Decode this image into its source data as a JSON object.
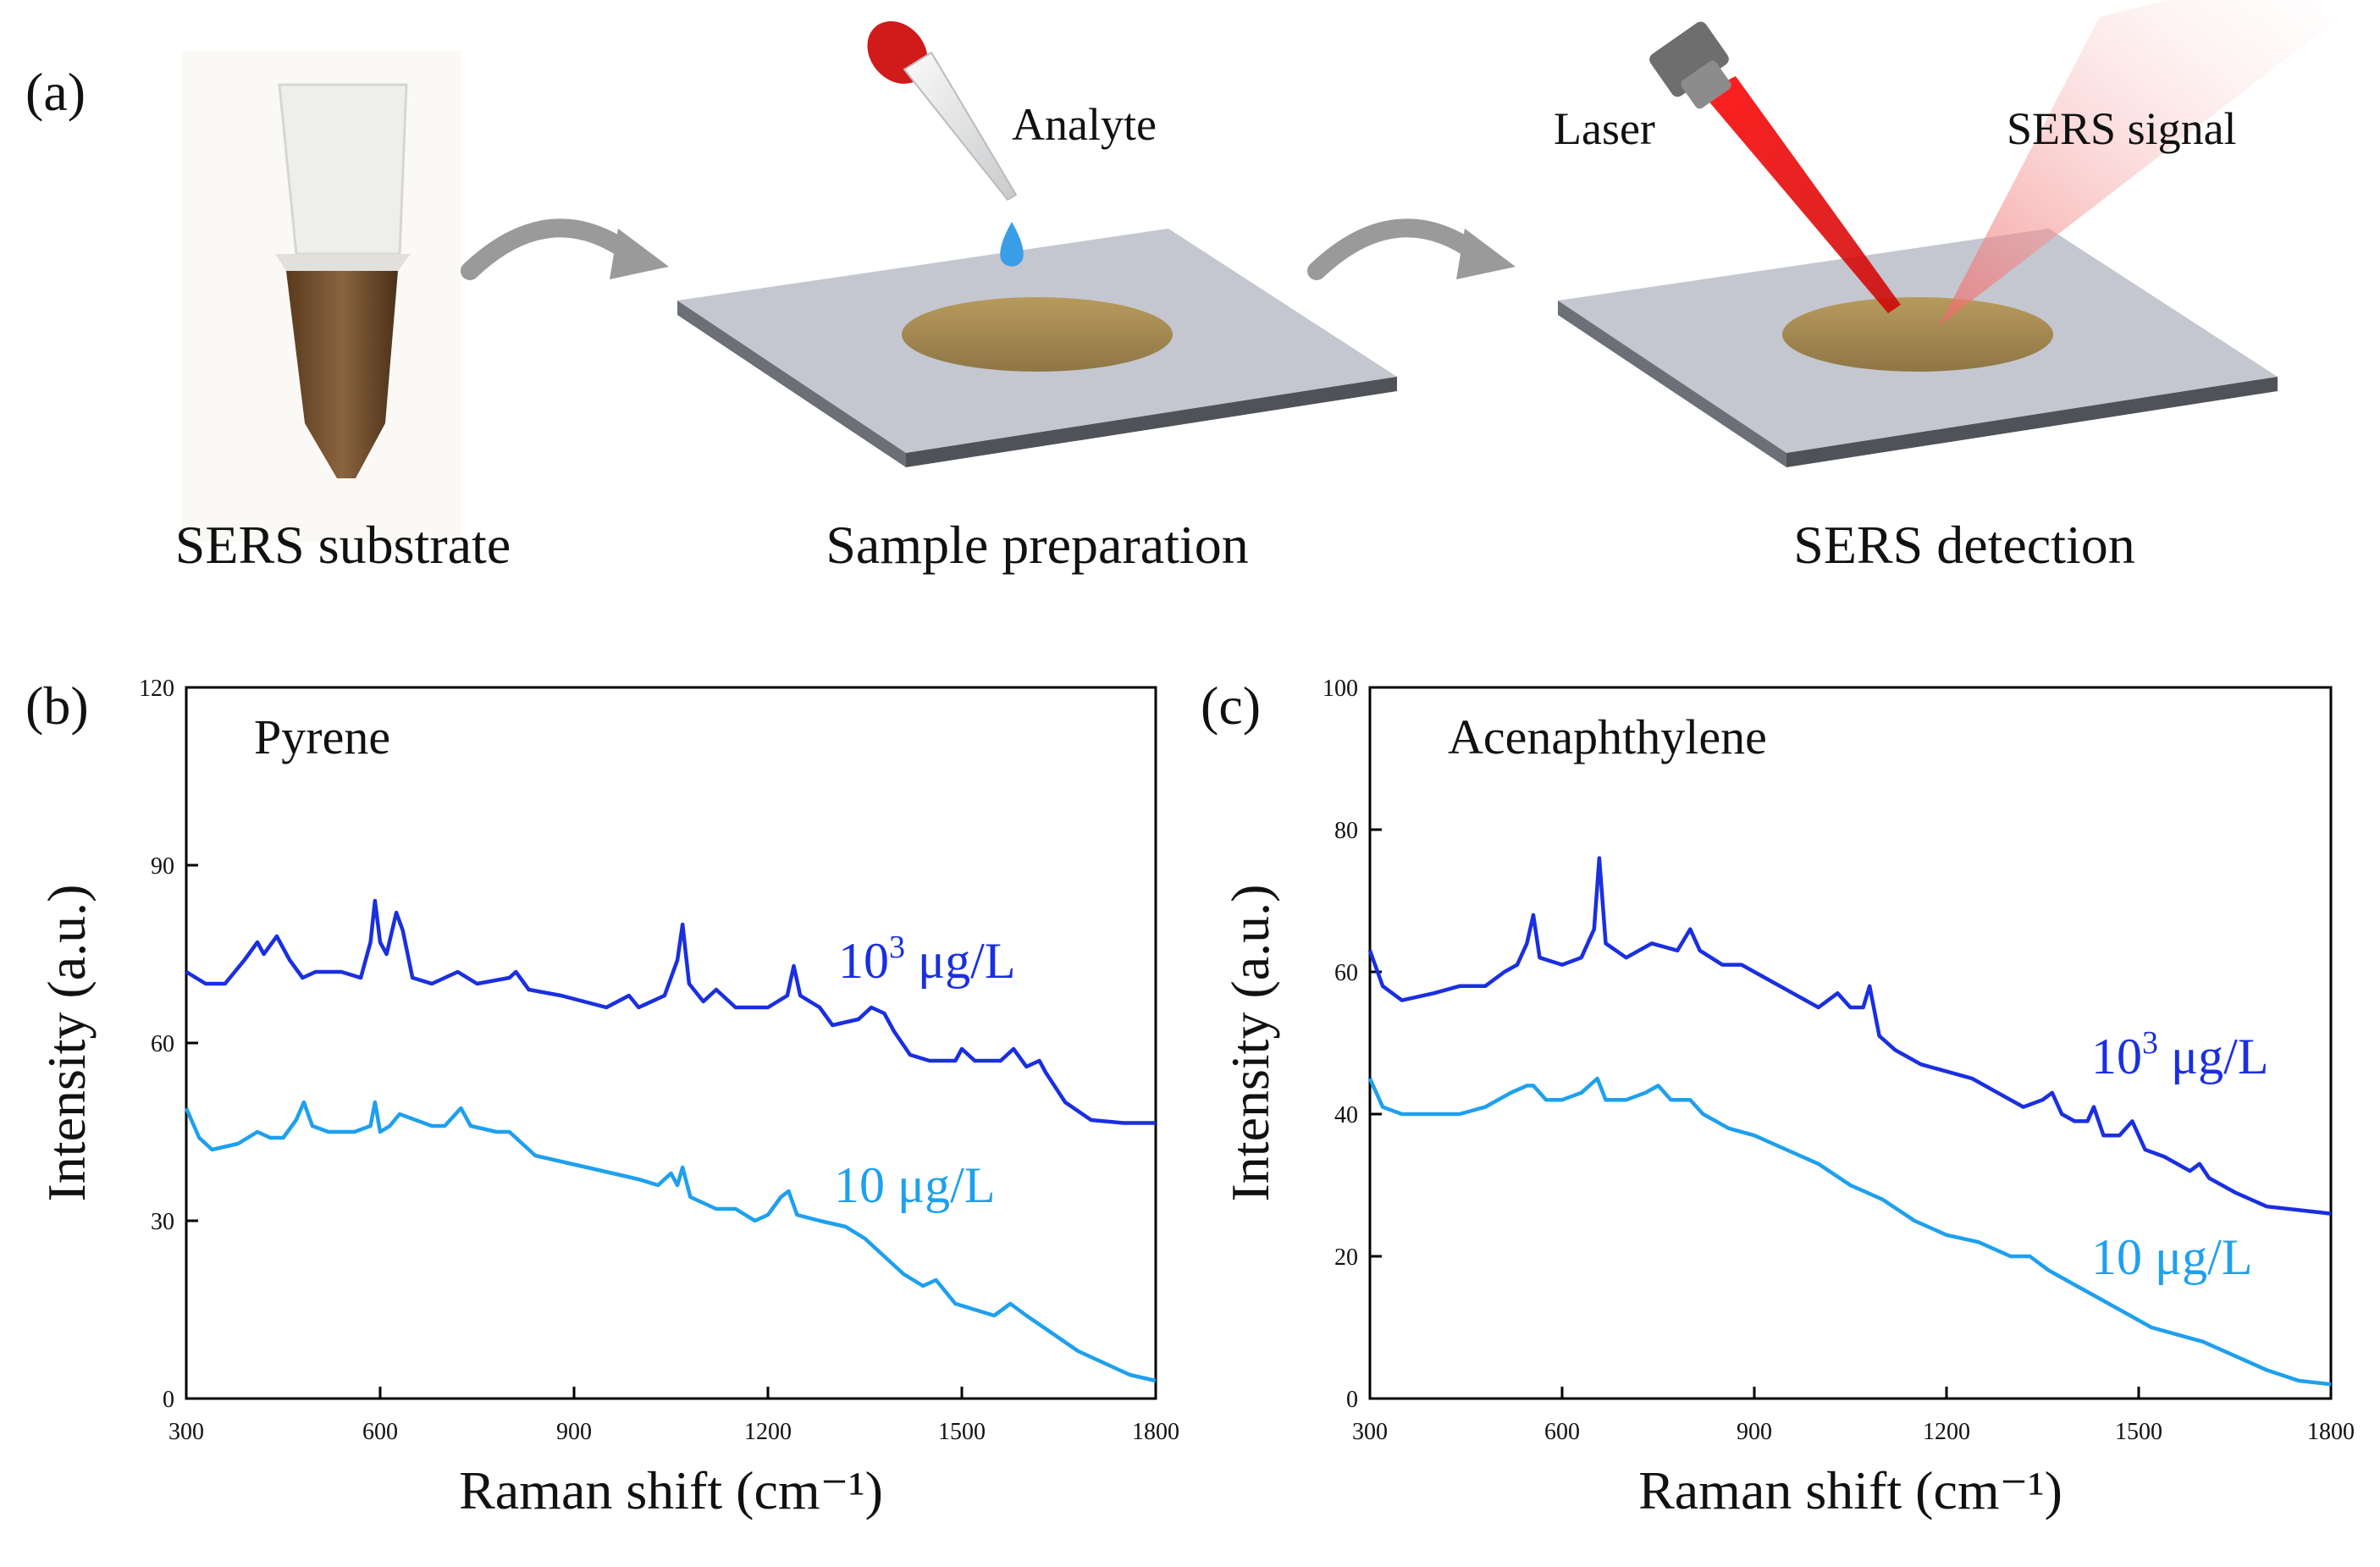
{
  "panel_a": {
    "label": "(a)",
    "steps": [
      {
        "caption": "SERS substrate"
      },
      {
        "caption": "Sample preparation",
        "note": "Analyte"
      },
      {
        "caption": "SERS detection",
        "note_left": "Laser",
        "note_right": "SERS signal"
      }
    ]
  },
  "colors": {
    "dark_series": "#1a2fe0",
    "light_series": "#1ea0ee",
    "plate": "#b8bcc6",
    "plate_edge": "#5d6068",
    "film": "#a28952",
    "laser": "#e01616"
  },
  "chart_data": [
    {
      "panel_label": "(b)",
      "type": "line",
      "title": "Pyrene",
      "xlabel": "Raman shift (cm⁻¹)",
      "ylabel": "Intensity (a.u.)",
      "xlim": [
        300,
        1800
      ],
      "ylim": [
        0,
        120
      ],
      "xticks": [
        "300",
        "600",
        "900",
        "1200",
        "1500",
        "1800"
      ],
      "yticks": [
        "0",
        "30",
        "60",
        "90",
        "120"
      ],
      "series": [
        {
          "name": "10³ μg/L",
          "name_base": "10",
          "name_sup": "3",
          "name_unit": " μg/L",
          "color": "#1a2fe0",
          "points": [
            [
              300,
              72
            ],
            [
              330,
              70
            ],
            [
              360,
              70
            ],
            [
              390,
              74
            ],
            [
              410,
              77
            ],
            [
              420,
              75
            ],
            [
              440,
              78
            ],
            [
              460,
              74
            ],
            [
              480,
              71
            ],
            [
              500,
              72
            ],
            [
              540,
              72
            ],
            [
              570,
              71
            ],
            [
              585,
              77
            ],
            [
              592,
              84
            ],
            [
              600,
              77
            ],
            [
              610,
              75
            ],
            [
              625,
              82
            ],
            [
              635,
              79
            ],
            [
              650,
              71
            ],
            [
              680,
              70
            ],
            [
              720,
              72
            ],
            [
              750,
              70
            ],
            [
              800,
              71
            ],
            [
              810,
              72
            ],
            [
              830,
              69
            ],
            [
              880,
              68
            ],
            [
              950,
              66
            ],
            [
              985,
              68
            ],
            [
              1000,
              66
            ],
            [
              1040,
              68
            ],
            [
              1060,
              74
            ],
            [
              1068,
              80
            ],
            [
              1078,
              70
            ],
            [
              1100,
              67
            ],
            [
              1120,
              69
            ],
            [
              1150,
              66
            ],
            [
              1200,
              66
            ],
            [
              1230,
              68
            ],
            [
              1240,
              73
            ],
            [
              1250,
              68
            ],
            [
              1280,
              66
            ],
            [
              1300,
              63
            ],
            [
              1340,
              64
            ],
            [
              1360,
              66
            ],
            [
              1380,
              65
            ],
            [
              1395,
              62
            ],
            [
              1420,
              58
            ],
            [
              1450,
              57
            ],
            [
              1490,
              57
            ],
            [
              1500,
              59
            ],
            [
              1520,
              57
            ],
            [
              1560,
              57
            ],
            [
              1580,
              59
            ],
            [
              1600,
              56
            ],
            [
              1620,
              57
            ],
            [
              1630,
              55
            ],
            [
              1660,
              50
            ],
            [
              1700,
              47
            ],
            [
              1750,
              46.5
            ],
            [
              1800,
              46.5
            ]
          ]
        },
        {
          "name": "10 μg/L",
          "name_base": "10",
          "name_sup": "",
          "name_unit": " μg/L",
          "color": "#1ea0ee",
          "points": [
            [
              300,
              49
            ],
            [
              320,
              44
            ],
            [
              340,
              42
            ],
            [
              380,
              43
            ],
            [
              410,
              45
            ],
            [
              430,
              44
            ],
            [
              450,
              44
            ],
            [
              470,
              47
            ],
            [
              482,
              50
            ],
            [
              495,
              46
            ],
            [
              520,
              45
            ],
            [
              560,
              45
            ],
            [
              585,
              46
            ],
            [
              592,
              50
            ],
            [
              600,
              45
            ],
            [
              615,
              46
            ],
            [
              630,
              48
            ],
            [
              680,
              46
            ],
            [
              700,
              46
            ],
            [
              725,
              49
            ],
            [
              740,
              46
            ],
            [
              780,
              45
            ],
            [
              800,
              45
            ],
            [
              840,
              41
            ],
            [
              880,
              40
            ],
            [
              920,
              39
            ],
            [
              960,
              38
            ],
            [
              1000,
              37
            ],
            [
              1030,
              36
            ],
            [
              1050,
              38
            ],
            [
              1060,
              36
            ],
            [
              1068,
              39
            ],
            [
              1080,
              34
            ],
            [
              1120,
              32
            ],
            [
              1150,
              32
            ],
            [
              1180,
              30
            ],
            [
              1200,
              31
            ],
            [
              1220,
              34
            ],
            [
              1232,
              35
            ],
            [
              1245,
              31
            ],
            [
              1280,
              30
            ],
            [
              1320,
              29
            ],
            [
              1350,
              27
            ],
            [
              1380,
              24
            ],
            [
              1410,
              21
            ],
            [
              1440,
              19
            ],
            [
              1460,
              20
            ],
            [
              1490,
              16
            ],
            [
              1520,
              15
            ],
            [
              1550,
              14
            ],
            [
              1575,
              16
            ],
            [
              1600,
              14
            ],
            [
              1640,
              11
            ],
            [
              1680,
              8
            ],
            [
              1720,
              6
            ],
            [
              1760,
              4
            ],
            [
              1800,
              3
            ]
          ]
        }
      ]
    },
    {
      "panel_label": "(c)",
      "type": "line",
      "title": "Acenaphthylene",
      "xlabel": "Raman shift (cm⁻¹)",
      "ylabel": "Intensity (a.u.)",
      "xlim": [
        300,
        1800
      ],
      "ylim": [
        0,
        100
      ],
      "xticks": [
        "300",
        "600",
        "900",
        "1200",
        "1500",
        "1800"
      ],
      "yticks": [
        "0",
        "20",
        "40",
        "60",
        "80",
        "100"
      ],
      "series": [
        {
          "name": "10³ μg/L",
          "name_base": "10",
          "name_sup": "3",
          "name_unit": " μg/L",
          "color": "#1a2fe0",
          "points": [
            [
              300,
              63
            ],
            [
              320,
              58
            ],
            [
              350,
              56
            ],
            [
              400,
              57
            ],
            [
              440,
              58
            ],
            [
              480,
              58
            ],
            [
              510,
              60
            ],
            [
              530,
              61
            ],
            [
              545,
              64
            ],
            [
              555,
              68
            ],
            [
              565,
              62
            ],
            [
              600,
              61
            ],
            [
              630,
              62
            ],
            [
              650,
              66
            ],
            [
              658,
              76
            ],
            [
              668,
              64
            ],
            [
              700,
              62
            ],
            [
              720,
              63
            ],
            [
              740,
              64
            ],
            [
              780,
              63
            ],
            [
              800,
              66
            ],
            [
              815,
              63
            ],
            [
              850,
              61
            ],
            [
              880,
              61
            ],
            [
              920,
              59
            ],
            [
              960,
              57
            ],
            [
              1000,
              55
            ],
            [
              1030,
              57
            ],
            [
              1050,
              55
            ],
            [
              1070,
              55
            ],
            [
              1080,
              58
            ],
            [
              1095,
              51
            ],
            [
              1120,
              49
            ],
            [
              1160,
              47
            ],
            [
              1200,
              46
            ],
            [
              1240,
              45
            ],
            [
              1280,
              43
            ],
            [
              1320,
              41
            ],
            [
              1350,
              42
            ],
            [
              1365,
              43
            ],
            [
              1380,
              40
            ],
            [
              1400,
              39
            ],
            [
              1420,
              39
            ],
            [
              1430,
              41
            ],
            [
              1445,
              37
            ],
            [
              1470,
              37
            ],
            [
              1490,
              39
            ],
            [
              1510,
              35
            ],
            [
              1540,
              34
            ],
            [
              1580,
              32
            ],
            [
              1595,
              33
            ],
            [
              1610,
              31
            ],
            [
              1650,
              29
            ],
            [
              1700,
              27
            ],
            [
              1750,
              26.5
            ],
            [
              1800,
              26
            ]
          ]
        },
        {
          "name": "10 μg/L",
          "name_base": "10",
          "name_sup": "",
          "name_unit": " μg/L",
          "color": "#1ea0ee",
          "points": [
            [
              300,
              45
            ],
            [
              320,
              41
            ],
            [
              350,
              40
            ],
            [
              400,
              40
            ],
            [
              440,
              40
            ],
            [
              480,
              41
            ],
            [
              520,
              43
            ],
            [
              545,
              44
            ],
            [
              555,
              44
            ],
            [
              575,
              42
            ],
            [
              600,
              42
            ],
            [
              630,
              43
            ],
            [
              655,
              45
            ],
            [
              668,
              42
            ],
            [
              700,
              42
            ],
            [
              730,
              43
            ],
            [
              750,
              44
            ],
            [
              770,
              42
            ],
            [
              800,
              42
            ],
            [
              820,
              40
            ],
            [
              860,
              38
            ],
            [
              900,
              37
            ],
            [
              950,
              35
            ],
            [
              1000,
              33
            ],
            [
              1050,
              30
            ],
            [
              1100,
              28
            ],
            [
              1150,
              25
            ],
            [
              1200,
              23
            ],
            [
              1250,
              22
            ],
            [
              1300,
              20
            ],
            [
              1330,
              20
            ],
            [
              1360,
              18
            ],
            [
              1400,
              16
            ],
            [
              1440,
              14
            ],
            [
              1480,
              12
            ],
            [
              1520,
              10
            ],
            [
              1560,
              9
            ],
            [
              1600,
              8
            ],
            [
              1650,
              6
            ],
            [
              1700,
              4
            ],
            [
              1750,
              2.5
            ],
            [
              1800,
              2
            ]
          ]
        }
      ]
    }
  ]
}
